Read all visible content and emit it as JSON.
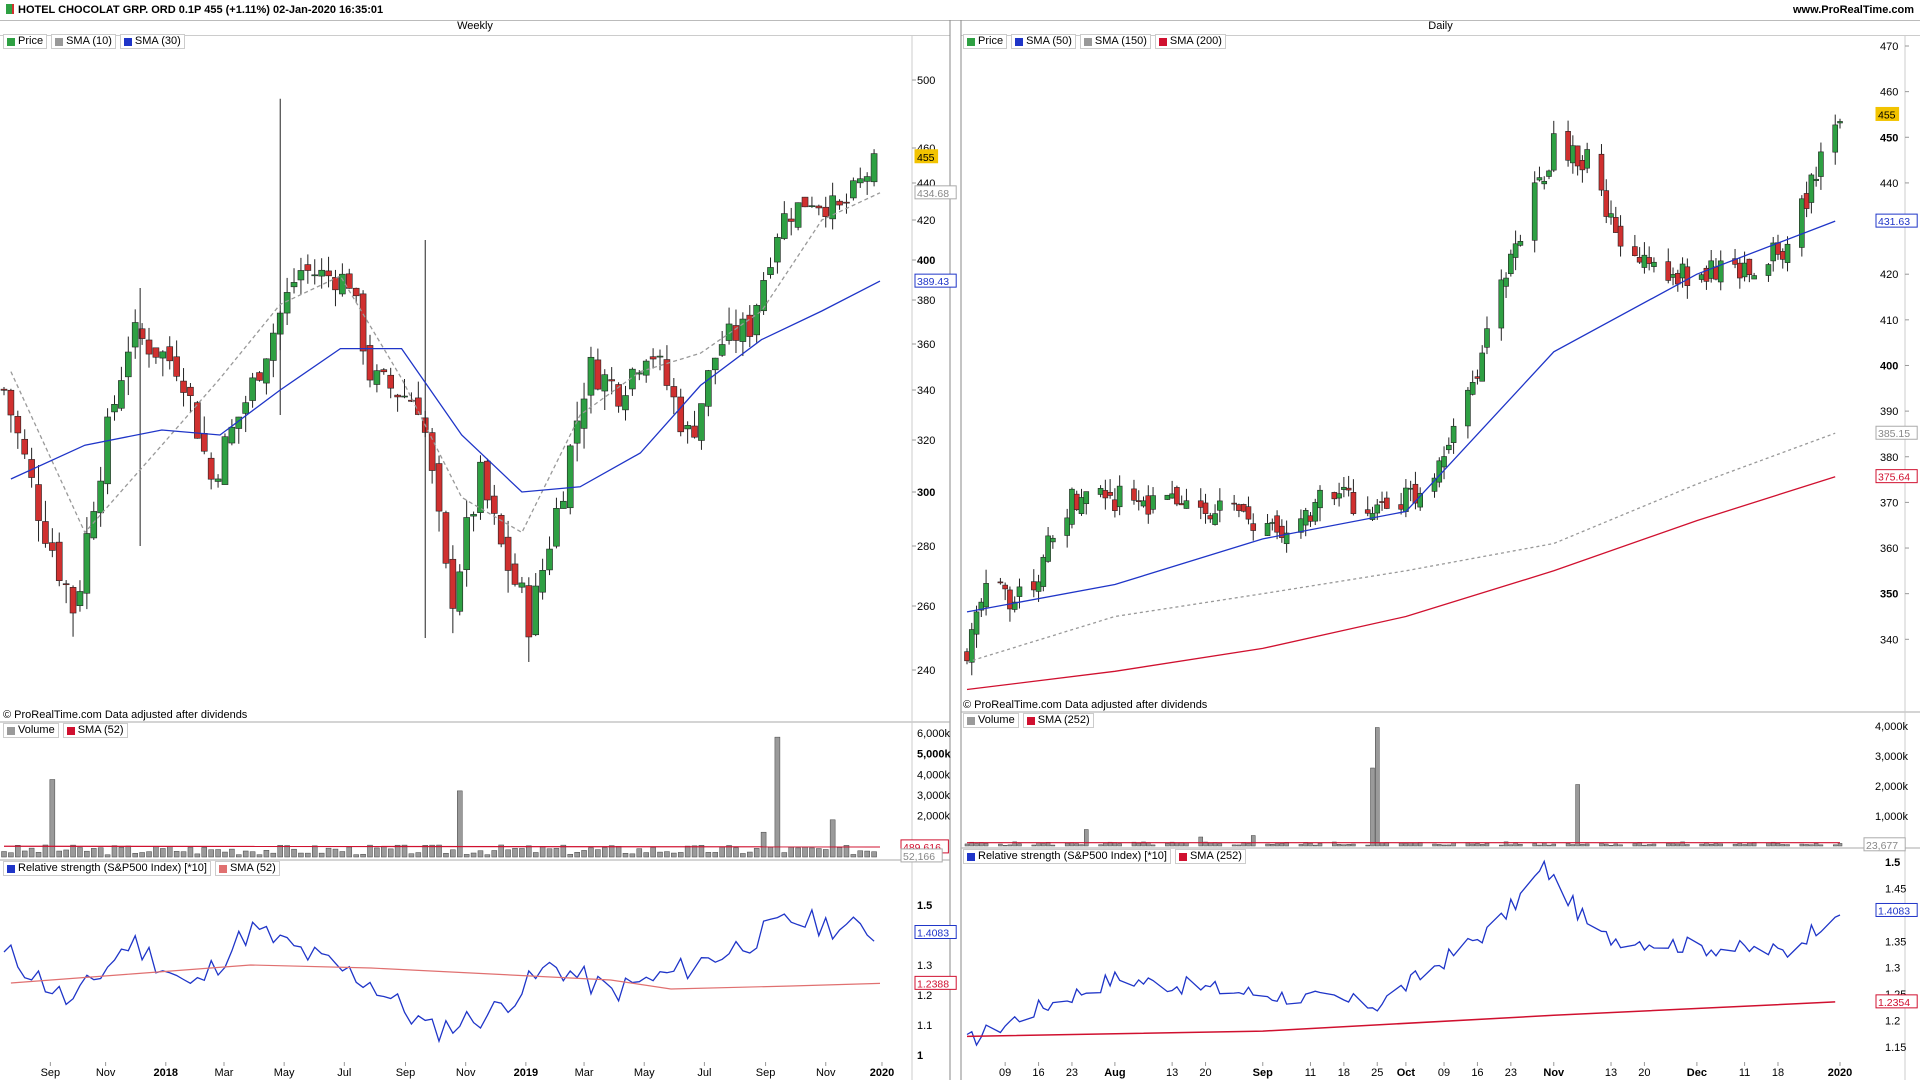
{
  "header": {
    "title": "HOTEL CHOCOLAT GRP. ORD 0.1P 455 (+1.11%) 02-Jan-2020 16:35:01",
    "site": "www.ProRealTime.com"
  },
  "notes": {
    "copyright": "© ProRealTime.com  Data adjusted after dividends"
  },
  "colors": {
    "up": "#2ea043",
    "down": "#d0302f",
    "sma_blue": "#1f35c8",
    "sma_grey": "#999999",
    "sma_red": "#d0102f",
    "volume": "#9a9a9a",
    "price_badge": "#f2c300"
  },
  "charts": {
    "weekly": {
      "label": "Weekly",
      "legend": [
        {
          "text": "Price",
          "color": "#2ea043"
        },
        {
          "text": "SMA (10)",
          "color": "#999999"
        },
        {
          "text": "SMA (30)",
          "color": "#1f35c8"
        }
      ],
      "volume_legend": [
        {
          "text": "Volume",
          "color": "#9a9a9a"
        },
        {
          "text": "SMA (52)",
          "color": "#d0102f"
        }
      ],
      "rs_legend": [
        {
          "text": "Relative strength (S&P500 Index) [*10]",
          "color": "#1f35c8"
        },
        {
          "text": "SMA (52)",
          "color": "#e07070"
        }
      ],
      "x_labels": [
        "Sep",
        "Nov",
        "2018",
        "Mar",
        "May",
        "Jul",
        "Sep",
        "Nov",
        "2019",
        "Mar",
        "May",
        "Jul",
        "Sep",
        "Nov",
        "2020"
      ],
      "y_ticks": [
        "240",
        "260",
        "280",
        "300",
        "320",
        "340",
        "360",
        "380",
        "400",
        "420",
        "440",
        "460",
        "500"
      ],
      "y_badges": [
        {
          "text": "455",
          "type": "price"
        },
        {
          "text": "434.68",
          "type": "grey"
        },
        {
          "text": "389.43",
          "type": "blue"
        }
      ],
      "volume_ticks": [
        "2,000k",
        "3,000k",
        "4,000k",
        "5,000k",
        "6,000k"
      ],
      "volume_badges": [
        {
          "text": "489,616",
          "type": "red"
        },
        {
          "text": "52,166",
          "type": "grey"
        }
      ],
      "rs_ticks": [
        "1",
        "1.1",
        "1.2",
        "1.3",
        "1.5"
      ],
      "rs_badges": [
        {
          "text": "1.4083",
          "type": "blue"
        },
        {
          "text": "1.2388",
          "type": "red"
        }
      ]
    },
    "daily": {
      "label": "Daily",
      "legend": [
        {
          "text": "Price",
          "color": "#2ea043"
        },
        {
          "text": "SMA (50)",
          "color": "#1f35c8"
        },
        {
          "text": "SMA (150)",
          "color": "#999999"
        },
        {
          "text": "SMA (200)",
          "color": "#d0102f"
        }
      ],
      "volume_legend": [
        {
          "text": "Volume",
          "color": "#9a9a9a"
        },
        {
          "text": "SMA (252)",
          "color": "#d0102f"
        }
      ],
      "rs_legend": [
        {
          "text": "Relative strength (S&P500 Index) [*10]",
          "color": "#1f35c8"
        },
        {
          "text": "SMA (252)",
          "color": "#d0102f"
        }
      ],
      "x_labels": [
        "09",
        "16",
        "23",
        "Aug",
        "13",
        "20",
        "Sep",
        "11",
        "18",
        "25",
        "Oct",
        "09",
        "16",
        "23",
        "Nov",
        "13",
        "20",
        "Dec",
        "11",
        "18",
        "2020"
      ],
      "y_ticks": [
        "340",
        "350",
        "360",
        "370",
        "380",
        "390",
        "400",
        "410",
        "420",
        "440",
        "450",
        "460",
        "470"
      ],
      "y_badges": [
        {
          "text": "455",
          "type": "price"
        },
        {
          "text": "431.63",
          "type": "blue"
        },
        {
          "text": "385.15",
          "type": "grey"
        },
        {
          "text": "375.64",
          "type": "red"
        }
      ],
      "volume_ticks": [
        "1,000k",
        "2,000k",
        "3,000k",
        "4,000k"
      ],
      "volume_badges": [
        {
          "text": "23,677",
          "type": "grey"
        }
      ],
      "rs_ticks": [
        "1.15",
        "1.2",
        "1.25",
        "1.3",
        "1.35",
        "1.45",
        "1.5"
      ],
      "rs_badges": [
        {
          "text": "1.4083",
          "type": "blue"
        },
        {
          "text": "1.2354",
          "type": "red"
        }
      ]
    }
  },
  "chart_data": [
    {
      "type": "line",
      "panel": "weekly-price",
      "series": [
        {
          "name": "SMA (10)",
          "x": [
            "2017-08-01",
            "2017-10-15",
            "2018-01-01",
            "2018-03-01",
            "2018-05-01",
            "2018-07-01",
            "2018-09-01",
            "2018-11-01",
            "2019-01-01",
            "2019-03-01",
            "2019-05-01",
            "2019-07-01",
            "2019-09-01",
            "2019-11-01",
            "2019-12-30"
          ],
          "y": [
            348,
            285,
            318,
            345,
            378,
            392,
            345,
            298,
            285,
            330,
            348,
            356,
            375,
            420,
            434.68
          ]
        },
        {
          "name": "SMA (30)",
          "x": [
            "2017-08-01",
            "2017-10-15",
            "2018-01-01",
            "2018-03-01",
            "2018-05-01",
            "2018-07-01",
            "2018-09-01",
            "2018-11-01",
            "2019-01-01",
            "2019-03-01",
            "2019-05-01",
            "2019-07-01",
            "2019-09-01",
            "2019-11-01",
            "2019-12-30"
          ],
          "y": [
            305,
            318,
            324,
            322,
            340,
            358,
            358,
            322,
            300,
            302,
            315,
            342,
            362,
            375,
            389.43
          ]
        }
      ]
    },
    {
      "type": "line",
      "panel": "daily-price",
      "series": [
        {
          "name": "SMA (50)",
          "x": [
            "2019-07-01",
            "2019-08-01",
            "2019-09-01",
            "2019-10-01",
            "2019-11-01",
            "2019-12-01",
            "2019-12-30"
          ],
          "y": [
            346,
            352,
            362,
            368,
            403,
            420,
            431.63
          ]
        },
        {
          "name": "SMA (150)",
          "x": [
            "2019-07-01",
            "2019-08-01",
            "2019-09-01",
            "2019-10-01",
            "2019-11-01",
            "2019-12-01",
            "2019-12-30"
          ],
          "y": [
            335,
            345,
            350,
            355,
            361,
            374,
            385.15
          ]
        },
        {
          "name": "SMA (200)",
          "x": [
            "2019-07-01",
            "2019-08-01",
            "2019-09-01",
            "2019-10-01",
            "2019-11-01",
            "2019-12-01",
            "2019-12-30"
          ],
          "y": [
            329,
            333,
            338,
            345,
            355,
            366,
            375.64
          ]
        }
      ]
    },
    {
      "type": "line",
      "panel": "weekly-relative-strength",
      "series": [
        {
          "name": "Relative strength (S&P500 Index) [*10]",
          "x": [
            "2017-08-01",
            "2017-10-01",
            "2017-12-01",
            "2018-02-01",
            "2018-04-01",
            "2018-06-01",
            "2018-08-01",
            "2018-10-01",
            "2018-12-01",
            "2019-02-01",
            "2019-04-01",
            "2019-06-01",
            "2019-08-01",
            "2019-10-01",
            "2019-12-30"
          ],
          "y": [
            1.33,
            1.17,
            1.38,
            1.22,
            1.42,
            1.33,
            1.24,
            1.08,
            1.14,
            1.3,
            1.21,
            1.27,
            1.35,
            1.45,
            1.4083
          ]
        },
        {
          "name": "SMA (52)",
          "x": [
            "2017-08-01",
            "2017-12-01",
            "2018-04-01",
            "2018-08-01",
            "2018-12-01",
            "2019-04-01",
            "2019-06-01",
            "2019-10-01",
            "2019-12-30"
          ],
          "y": [
            1.24,
            1.27,
            1.3,
            1.29,
            1.27,
            1.25,
            1.22,
            1.23,
            1.2388
          ]
        }
      ]
    },
    {
      "type": "line",
      "panel": "daily-relative-strength",
      "series": [
        {
          "name": "Relative strength (S&P500 Index) [*10]",
          "x": [
            "2019-07-01",
            "2019-07-15",
            "2019-08-01",
            "2019-09-01",
            "2019-09-25",
            "2019-10-20",
            "2019-10-30",
            "2019-11-10",
            "2019-12-01",
            "2019-12-20",
            "2019-12-30"
          ],
          "y": [
            1.16,
            1.22,
            1.28,
            1.25,
            1.23,
            1.38,
            1.49,
            1.36,
            1.34,
            1.33,
            1.4083
          ]
        },
        {
          "name": "SMA (252)",
          "x": [
            "2019-07-01",
            "2019-09-01",
            "2019-11-01",
            "2019-12-30"
          ],
          "y": [
            1.17,
            1.18,
            1.21,
            1.2354
          ]
        }
      ]
    }
  ]
}
